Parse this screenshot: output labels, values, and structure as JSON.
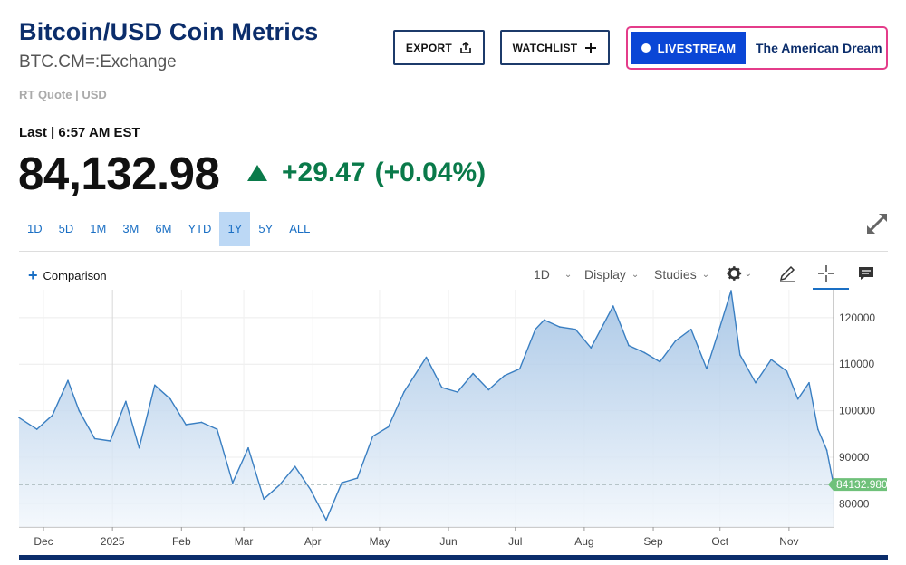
{
  "header": {
    "title": "Bitcoin/USD Coin Metrics",
    "symbol": "BTC.CM=:Exchange",
    "quote_type": "RT Quote | USD",
    "export_label": "EXPORT",
    "watchlist_label": "WATCHLIST",
    "livestream_label": "LIVESTREAM",
    "livestream_show": "The American Dream"
  },
  "quote": {
    "last_label": "Last | 6:57 AM EST",
    "price": "84,132.98",
    "change": "+29.47",
    "change_pct": "(+0.04%)",
    "direction": "up"
  },
  "ranges": [
    "1D",
    "5D",
    "1M",
    "3M",
    "6M",
    "YTD",
    "1Y",
    "5Y",
    "ALL"
  ],
  "active_range": "1Y",
  "toolbar": {
    "comparison_label": "Comparison",
    "interval_label": "1D",
    "display_label": "Display",
    "studies_label": "Studies"
  },
  "icons": [
    "share-icon",
    "plus-icon",
    "expand-icon",
    "gear-icon",
    "pencil-icon",
    "crosshair-icon",
    "comment-icon"
  ],
  "colors": {
    "title": "#0b2d6b",
    "positive": "#0a7a4a",
    "link": "#1a6fc4",
    "line": "#3a7fc2",
    "current_price_tag": "#6fc17a",
    "livestream": "#0a46d6"
  },
  "chart_data": {
    "type": "area",
    "x_tick_labels": [
      "Dec",
      "2025",
      "Feb",
      "Mar",
      "Apr",
      "May",
      "Jun",
      "Jul",
      "Aug",
      "Sep",
      "Oct",
      "Nov"
    ],
    "y_tick_labels": [
      "80000",
      "90000",
      "100000",
      "110000",
      "120000"
    ],
    "ylim": [
      75000,
      126000
    ],
    "current_value_label": "84132.980",
    "current_value": 84132.98,
    "x": [
      "2024-11-20",
      "2024-11-28",
      "2024-12-05",
      "2024-12-12",
      "2024-12-17",
      "2024-12-24",
      "2024-12-31",
      "2025-01-07",
      "2025-01-13",
      "2025-01-20",
      "2025-01-27",
      "2025-02-03",
      "2025-02-10",
      "2025-02-17",
      "2025-02-24",
      "2025-03-03",
      "2025-03-10",
      "2025-03-17",
      "2025-03-24",
      "2025-03-31",
      "2025-04-07",
      "2025-04-14",
      "2025-04-21",
      "2025-04-28",
      "2025-05-05",
      "2025-05-12",
      "2025-05-22",
      "2025-05-29",
      "2025-06-05",
      "2025-06-12",
      "2025-06-19",
      "2025-06-26",
      "2025-07-03",
      "2025-07-10",
      "2025-07-14",
      "2025-07-21",
      "2025-07-28",
      "2025-08-04",
      "2025-08-14",
      "2025-08-21",
      "2025-08-28",
      "2025-09-04",
      "2025-09-11",
      "2025-09-18",
      "2025-09-25",
      "2025-10-01",
      "2025-10-06",
      "2025-10-10",
      "2025-10-17",
      "2025-10-24",
      "2025-10-31",
      "2025-11-05",
      "2025-11-10",
      "2025-11-14",
      "2025-11-18",
      "2025-11-21"
    ],
    "values": [
      98500,
      96000,
      99000,
      106500,
      100000,
      94000,
      93500,
      102000,
      92000,
      105500,
      102500,
      97000,
      97500,
      96000,
      84500,
      92000,
      81000,
      84000,
      88000,
      83000,
      76500,
      84500,
      85500,
      94500,
      96500,
      104000,
      111500,
      105000,
      104000,
      108000,
      104500,
      107500,
      109000,
      117500,
      119500,
      118000,
      117500,
      113500,
      122500,
      114000,
      112500,
      110500,
      115000,
      117500,
      109000,
      118000,
      125800,
      112000,
      106000,
      111000,
      108500,
      102500,
      106000,
      96000,
      91500,
      84132.98
    ],
    "grid": true,
    "y_axis_position": "right"
  }
}
